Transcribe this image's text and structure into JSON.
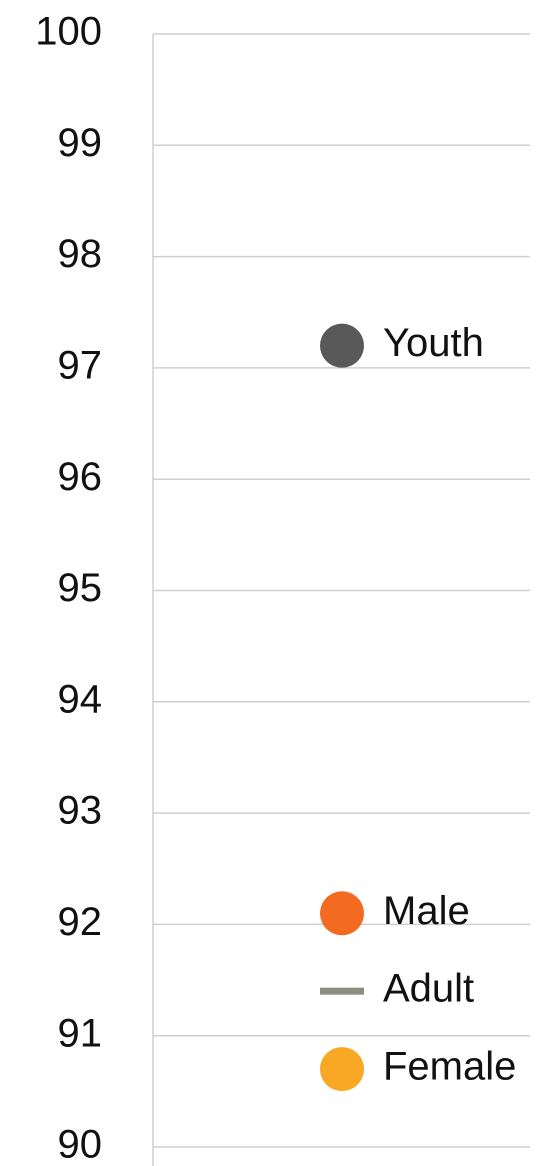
{
  "chart_data": {
    "type": "scatter",
    "series": [
      {
        "name": "Youth",
        "color": "#595959",
        "marker": "circle",
        "values": [
          97.2
        ]
      },
      {
        "name": "Male",
        "color": "#f26b21",
        "marker": "circle",
        "values": [
          92.1
        ]
      },
      {
        "name": "Adult",
        "color": "#8a8f7f",
        "marker": "dash",
        "values": [
          91.4
        ]
      },
      {
        "name": "Female",
        "color": "#f9a825",
        "marker": "circle",
        "values": [
          90.7
        ]
      }
    ],
    "ylim": [
      90,
      100
    ],
    "yticks": [
      90,
      91,
      92,
      93,
      94,
      95,
      96,
      97,
      98,
      99,
      100
    ],
    "grid": true
  }
}
